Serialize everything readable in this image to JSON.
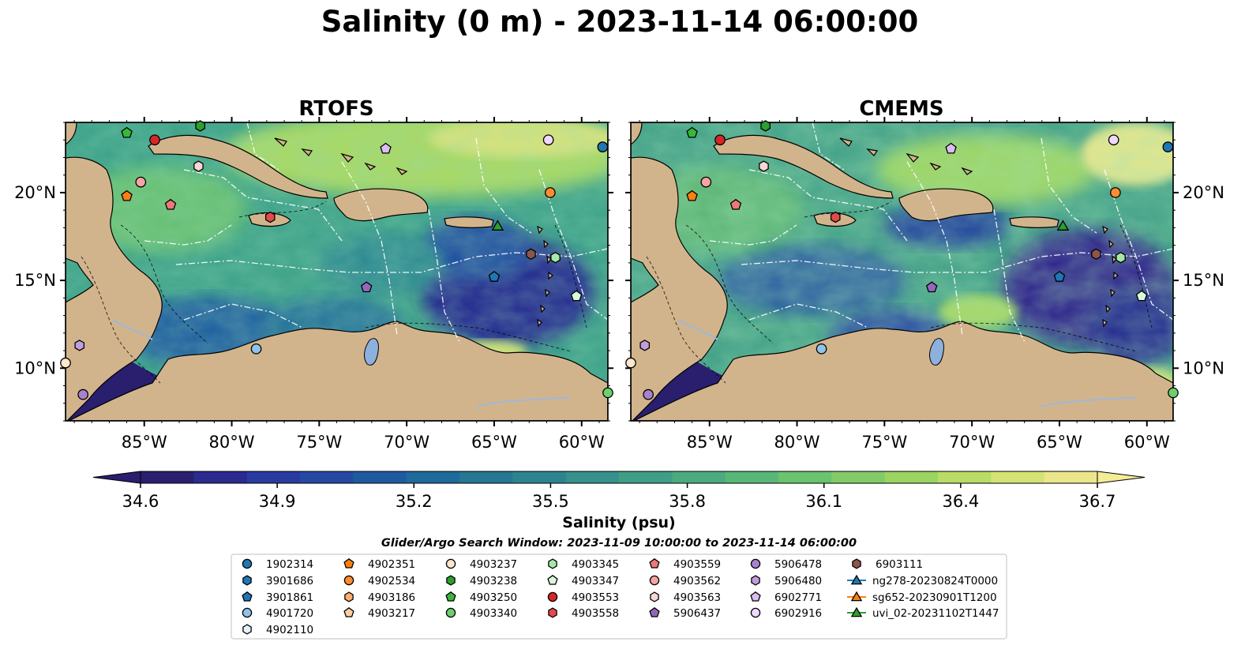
{
  "figure": {
    "title": "Salinity (0 m) - 2023-11-14 06:00:00",
    "panels": [
      "RTOFS",
      "CMEMS"
    ],
    "colorbar_label": "Salinity (psu)",
    "colorbar_ticks": [
      "34.6",
      "34.9",
      "35.2",
      "35.5",
      "35.8",
      "36.1",
      "36.4",
      "36.7"
    ],
    "colormap": [
      "#2a1e6e",
      "#2b2a8e",
      "#2a3b9f",
      "#2549a2",
      "#1e5aa0",
      "#1e6a9b",
      "#257794",
      "#2d8490",
      "#36918c",
      "#3f9e86",
      "#4aab80",
      "#58b778",
      "#6bc26f",
      "#82cb67",
      "#9cd462",
      "#b9dc66",
      "#d5e275",
      "#ebe68a"
    ],
    "lat_ticks": [
      "10°N",
      "15°N",
      "20°N"
    ],
    "lon_ticks": [
      "85°W",
      "80°W",
      "75°W",
      "70°W",
      "65°W",
      "60°W"
    ],
    "search_window": "Glider/Argo Search Window: 2023-11-09 10:00:00 to 2023-11-14 06:00:00",
    "colors": {
      "land": "#d2b48c",
      "deep_ocean": "#2a1e6e",
      "lake": "#8eb0dd",
      "eez": "#ffffff"
    }
  },
  "legend": [
    {
      "label": "1902314",
      "marker": "circle",
      "color": "#1f77b4"
    },
    {
      "label": "3901686",
      "marker": "hexagon",
      "color": "#1f77b4"
    },
    {
      "label": "3901861",
      "marker": "pentagon",
      "color": "#1f77b4"
    },
    {
      "label": "4901720",
      "marker": "circle",
      "color": "#8fc3ea"
    },
    {
      "label": "4902110",
      "marker": "hexagon",
      "color": "#e6f2fb"
    },
    {
      "label": "4902351",
      "marker": "pentagon",
      "color": "#ff7f0e"
    },
    {
      "label": "4902534",
      "marker": "circle",
      "color": "#ff8c2e"
    },
    {
      "label": "4903186",
      "marker": "hexagon",
      "color": "#ffae6b"
    },
    {
      "label": "4903217",
      "marker": "pentagon",
      "color": "#ffcfa0"
    },
    {
      "label": "4903237",
      "marker": "circle",
      "color": "#ffe6cc"
    },
    {
      "label": "4903238",
      "marker": "hexagon",
      "color": "#2ca02c"
    },
    {
      "label": "4903250",
      "marker": "pentagon",
      "color": "#38b838"
    },
    {
      "label": "4903340",
      "marker": "circle",
      "color": "#6cd06c"
    },
    {
      "label": "4903345",
      "marker": "hexagon",
      "color": "#a6e8a6"
    },
    {
      "label": "4903347",
      "marker": "pentagon",
      "color": "#d8f8d8"
    },
    {
      "label": "4903553",
      "marker": "circle",
      "color": "#d62728"
    },
    {
      "label": "4903558",
      "marker": "hexagon",
      "color": "#e24a4a"
    },
    {
      "label": "4903559",
      "marker": "pentagon",
      "color": "#ee7777"
    },
    {
      "label": "4903562",
      "marker": "circle",
      "color": "#f5a3a3"
    },
    {
      "label": "4903563",
      "marker": "hexagon",
      "color": "#fbd6d6"
    },
    {
      "label": "5906437",
      "marker": "pentagon",
      "color": "#9467bd"
    },
    {
      "label": "5906478",
      "marker": "circle",
      "color": "#a981cc"
    },
    {
      "label": "5906480",
      "marker": "hexagon",
      "color": "#c29ddb"
    },
    {
      "label": "6902771",
      "marker": "pentagon",
      "color": "#dbbdf0"
    },
    {
      "label": "6902916",
      "marker": "circle",
      "color": "#f0d8ff"
    },
    {
      "label": "6903111",
      "marker": "hexagon",
      "color": "#8c564b"
    },
    {
      "label": "ng278-20230824T0000",
      "marker": "triangle",
      "color": "#1f77b4",
      "line": true
    },
    {
      "label": "sg652-20230901T1200",
      "marker": "triangle",
      "color": "#ff7f0e",
      "line": true
    },
    {
      "label": "uvi_02-20231102T1447",
      "marker": "triangle",
      "color": "#2ca02c",
      "line": true
    }
  ],
  "chart_data": {
    "type": "heatmap",
    "variable": "Salinity",
    "units": "psu",
    "depth": "0 m",
    "time": "2023-11-14 06:00:00",
    "models": [
      "RTOFS",
      "CMEMS"
    ],
    "colorbar_range": [
      34.6,
      36.7
    ],
    "colorbar_extend": "both",
    "lon_range": [
      -89.5,
      -58.5
    ],
    "lat_range": [
      7,
      24
    ],
    "observations": [
      {
        "id": "1902314",
        "lon": -58.8,
        "lat": 22.6
      },
      {
        "id": "3901861",
        "lon": -65.0,
        "lat": 15.2
      },
      {
        "id": "4901720",
        "lon": -78.6,
        "lat": 11.1
      },
      {
        "id": "4902351",
        "lon": -86.0,
        "lat": 19.8
      },
      {
        "id": "4902534",
        "lon": -61.8,
        "lat": 20.0
      },
      {
        "id": "4903237",
        "lon": -89.5,
        "lat": 10.3
      },
      {
        "id": "4903238",
        "lon": -81.8,
        "lat": 23.8
      },
      {
        "id": "4903250",
        "lon": -86.0,
        "lat": 23.4
      },
      {
        "id": "4903340",
        "lon": -58.5,
        "lat": 8.6
      },
      {
        "id": "4903345",
        "lon": -61.5,
        "lat": 16.3
      },
      {
        "id": "4903347",
        "lon": -60.3,
        "lat": 14.1
      },
      {
        "id": "4903553",
        "lon": -84.4,
        "lat": 23.0
      },
      {
        "id": "4903558",
        "lon": -77.8,
        "lat": 18.6
      },
      {
        "id": "4903559",
        "lon": -83.5,
        "lat": 19.3
      },
      {
        "id": "4903562",
        "lon": -85.2,
        "lat": 20.6
      },
      {
        "id": "4903563",
        "lon": -81.9,
        "lat": 21.5
      },
      {
        "id": "5906437",
        "lon": -72.3,
        "lat": 14.6
      },
      {
        "id": "5906478",
        "lon": -88.5,
        "lat": 8.5
      },
      {
        "id": "5906480",
        "lon": -88.7,
        "lat": 11.3
      },
      {
        "id": "6902771",
        "lon": -71.2,
        "lat": 22.5
      },
      {
        "id": "6902916",
        "lon": -61.9,
        "lat": 23.0
      },
      {
        "id": "6903111",
        "lon": -62.9,
        "lat": 16.5
      },
      {
        "id": "uvi_02-20231102T1447",
        "lon": -64.8,
        "lat": 18.1
      }
    ]
  }
}
